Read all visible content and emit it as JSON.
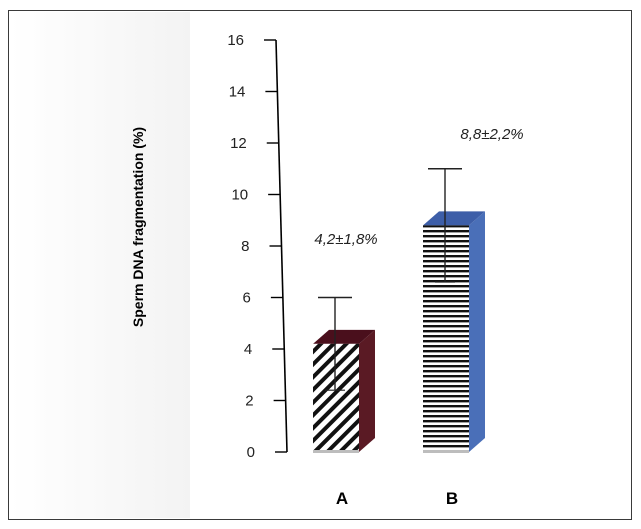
{
  "chart_data": {
    "type": "bar",
    "title": "",
    "xlabel": "",
    "ylabel": "Sperm DNA fragmentation (%)",
    "ylim": [
      0,
      16
    ],
    "yticks": [
      "0",
      "2",
      "4",
      "6",
      "8",
      "10",
      "12",
      "14",
      "16"
    ],
    "categories": [
      "A",
      "B"
    ],
    "values": [
      4.2,
      8.8
    ],
    "errors": [
      1.8,
      2.2
    ],
    "annotations": [
      "4,2±1,8%",
      "8,8±2,2%"
    ],
    "grid": false,
    "legend": "none",
    "bar_styles": [
      {
        "pattern": "diagonal-stripes",
        "side_color": "#5a1a24",
        "top_color": "#4a0f1c"
      },
      {
        "pattern": "horizontal-stripes",
        "side_color": "#4a6fb8",
        "top_color": "#3d5ea8"
      }
    ]
  }
}
